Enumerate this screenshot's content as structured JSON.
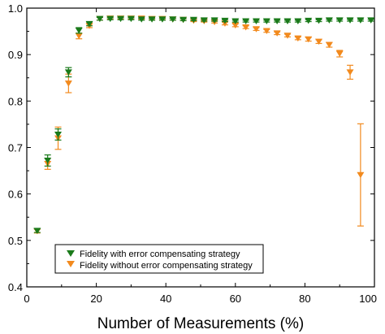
{
  "chart_data": {
    "type": "scatter",
    "title": "",
    "xlabel": "Number of Measurements (%)",
    "ylabel": "",
    "xlim": [
      0,
      100
    ],
    "ylim": [
      0.4,
      1.0
    ],
    "x_ticks": [
      0,
      20,
      40,
      60,
      80,
      100
    ],
    "x_tick_labels": [
      "0",
      "20",
      "40",
      "60",
      "80",
      "100"
    ],
    "y_ticks": [
      0.4,
      0.5,
      0.6,
      0.7,
      0.8,
      0.9,
      1.0
    ],
    "y_tick_labels": [
      "0.4",
      "0.5",
      "0.6",
      "0.7",
      "0.8",
      "0.9",
      "1.0"
    ],
    "grid": false,
    "legend_position": "bottom-left",
    "series": [
      {
        "name": "Fidelity with error compensating strategy",
        "color": "#1a7a1a",
        "marker": "triangle-down",
        "points": [
          {
            "x": 3,
            "y": 0.521,
            "err": 0.004
          },
          {
            "x": 6,
            "y": 0.672,
            "err": 0.012
          },
          {
            "x": 9,
            "y": 0.728,
            "err": 0.012
          },
          {
            "x": 12,
            "y": 0.862,
            "err": 0.01
          },
          {
            "x": 15,
            "y": 0.952,
            "err": 0.006
          },
          {
            "x": 18,
            "y": 0.966,
            "err": 0.004
          },
          {
            "x": 21,
            "y": 0.977,
            "err": 0.003
          },
          {
            "x": 24,
            "y": 0.977,
            "err": 0.002
          },
          {
            "x": 27,
            "y": 0.977,
            "err": 0.002
          },
          {
            "x": 30,
            "y": 0.977,
            "err": 0.002
          },
          {
            "x": 33,
            "y": 0.976,
            "err": 0.002
          },
          {
            "x": 36,
            "y": 0.976,
            "err": 0.002
          },
          {
            "x": 39,
            "y": 0.976,
            "err": 0.002
          },
          {
            "x": 42,
            "y": 0.976,
            "err": 0.002
          },
          {
            "x": 45,
            "y": 0.975,
            "err": 0.002
          },
          {
            "x": 48,
            "y": 0.975,
            "err": 0.002
          },
          {
            "x": 51,
            "y": 0.974,
            "err": 0.002
          },
          {
            "x": 54,
            "y": 0.974,
            "err": 0.002
          },
          {
            "x": 57,
            "y": 0.973,
            "err": 0.002
          },
          {
            "x": 60,
            "y": 0.972,
            "err": 0.002
          },
          {
            "x": 63,
            "y": 0.972,
            "err": 0.002
          },
          {
            "x": 66,
            "y": 0.972,
            "err": 0.002
          },
          {
            "x": 69,
            "y": 0.972,
            "err": 0.002
          },
          {
            "x": 72,
            "y": 0.972,
            "err": 0.002
          },
          {
            "x": 75,
            "y": 0.972,
            "err": 0.002
          },
          {
            "x": 78,
            "y": 0.972,
            "err": 0.002
          },
          {
            "x": 81,
            "y": 0.973,
            "err": 0.002
          },
          {
            "x": 84,
            "y": 0.973,
            "err": 0.002
          },
          {
            "x": 87,
            "y": 0.974,
            "err": 0.002
          },
          {
            "x": 90,
            "y": 0.974,
            "err": 0.002
          },
          {
            "x": 93,
            "y": 0.974,
            "err": 0.002
          },
          {
            "x": 96,
            "y": 0.974,
            "err": 0.002
          },
          {
            "x": 99,
            "y": 0.974,
            "err": 0.002
          }
        ]
      },
      {
        "name": "Fidelity without error compensating strategy",
        "color": "#f28a1e",
        "marker": "triangle-down",
        "points": [
          {
            "x": 3,
            "y": 0.52,
            "err": 0.004
          },
          {
            "x": 6,
            "y": 0.665,
            "err": 0.012
          },
          {
            "x": 9,
            "y": 0.72,
            "err": 0.024
          },
          {
            "x": 12,
            "y": 0.838,
            "err": 0.02
          },
          {
            "x": 15,
            "y": 0.94,
            "err": 0.006
          },
          {
            "x": 18,
            "y": 0.962,
            "err": 0.004
          },
          {
            "x": 21,
            "y": 0.977,
            "err": 0.003
          },
          {
            "x": 24,
            "y": 0.978,
            "err": 0.002
          },
          {
            "x": 27,
            "y": 0.978,
            "err": 0.002
          },
          {
            "x": 30,
            "y": 0.978,
            "err": 0.002
          },
          {
            "x": 33,
            "y": 0.978,
            "err": 0.002
          },
          {
            "x": 36,
            "y": 0.977,
            "err": 0.002
          },
          {
            "x": 39,
            "y": 0.977,
            "err": 0.002
          },
          {
            "x": 42,
            "y": 0.976,
            "err": 0.002
          },
          {
            "x": 45,
            "y": 0.975,
            "err": 0.002
          },
          {
            "x": 48,
            "y": 0.973,
            "err": 0.002
          },
          {
            "x": 51,
            "y": 0.972,
            "err": 0.002
          },
          {
            "x": 54,
            "y": 0.97,
            "err": 0.002
          },
          {
            "x": 57,
            "y": 0.967,
            "err": 0.003
          },
          {
            "x": 60,
            "y": 0.963,
            "err": 0.003
          },
          {
            "x": 63,
            "y": 0.959,
            "err": 0.003
          },
          {
            "x": 66,
            "y": 0.955,
            "err": 0.003
          },
          {
            "x": 69,
            "y": 0.951,
            "err": 0.003
          },
          {
            "x": 72,
            "y": 0.946,
            "err": 0.003
          },
          {
            "x": 75,
            "y": 0.941,
            "err": 0.003
          },
          {
            "x": 78,
            "y": 0.935,
            "err": 0.003
          },
          {
            "x": 81,
            "y": 0.933,
            "err": 0.004
          },
          {
            "x": 84,
            "y": 0.928,
            "err": 0.004
          },
          {
            "x": 87,
            "y": 0.921,
            "err": 0.005
          },
          {
            "x": 90,
            "y": 0.902,
            "err": 0.007
          },
          {
            "x": 93,
            "y": 0.862,
            "err": 0.015
          },
          {
            "x": 96,
            "y": 0.641,
            "err": 0.11
          }
        ]
      }
    ]
  }
}
